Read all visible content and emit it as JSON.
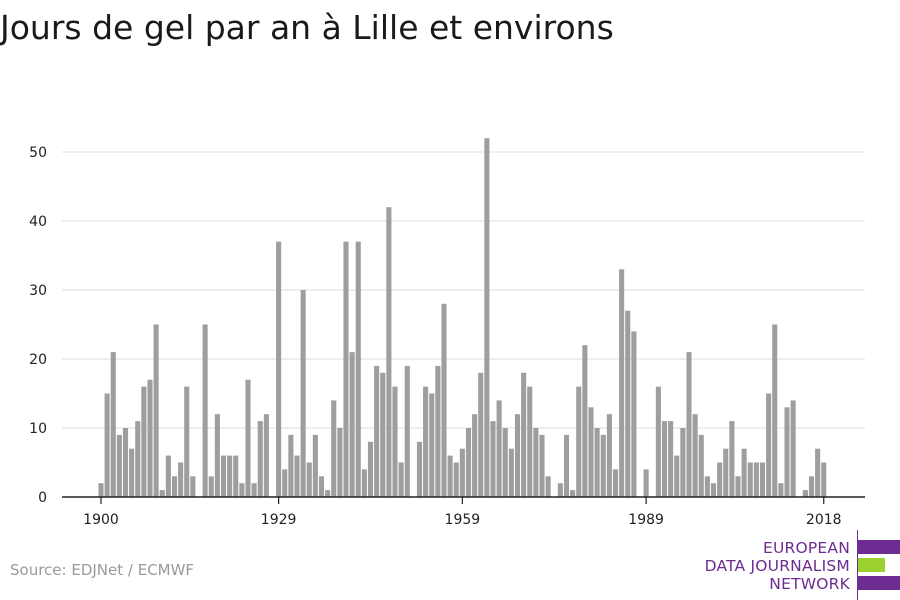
{
  "title": "Jours de gel par an à Lille et environs",
  "source": "Source: EDJNet / ECMWF",
  "logo": {
    "lines": [
      "EUROPEAN",
      "DATA JOURNALISM",
      "NETWORK"
    ],
    "colors": {
      "primary": "#6d2c91",
      "accent": "#9bd12e"
    }
  },
  "chart_data": {
    "type": "bar",
    "title": "Jours de gel par an à Lille et environs",
    "xlabel": "",
    "ylabel": "",
    "x_ticks": [
      1900,
      1929,
      1959,
      1989,
      2018
    ],
    "y_ticks": [
      0,
      10,
      20,
      30,
      40,
      50
    ],
    "ylim": [
      0,
      55
    ],
    "grid": true,
    "bar_color": "#9e9e9e",
    "x": [
      1900,
      1901,
      1902,
      1903,
      1904,
      1905,
      1906,
      1907,
      1908,
      1909,
      1910,
      1911,
      1912,
      1913,
      1914,
      1915,
      1916,
      1917,
      1918,
      1919,
      1920,
      1921,
      1922,
      1923,
      1924,
      1925,
      1926,
      1927,
      1928,
      1929,
      1930,
      1931,
      1932,
      1933,
      1934,
      1935,
      1936,
      1937,
      1938,
      1939,
      1940,
      1941,
      1942,
      1943,
      1944,
      1945,
      1946,
      1947,
      1948,
      1949,
      1950,
      1951,
      1952,
      1953,
      1954,
      1955,
      1956,
      1957,
      1958,
      1959,
      1960,
      1961,
      1962,
      1963,
      1964,
      1965,
      1966,
      1967,
      1968,
      1969,
      1970,
      1971,
      1972,
      1973,
      1974,
      1975,
      1976,
      1977,
      1978,
      1979,
      1980,
      1981,
      1982,
      1983,
      1984,
      1985,
      1986,
      1987,
      1988,
      1989,
      1990,
      1991,
      1992,
      1993,
      1994,
      1995,
      1996,
      1997,
      1998,
      1999,
      2000,
      2001,
      2002,
      2003,
      2004,
      2005,
      2006,
      2007,
      2008,
      2009,
      2010,
      2011,
      2012,
      2013,
      2014,
      2015,
      2016,
      2017,
      2018
    ],
    "values": [
      2,
      15,
      21,
      9,
      10,
      7,
      11,
      16,
      17,
      25,
      1,
      6,
      3,
      5,
      16,
      3,
      0,
      25,
      3,
      12,
      6,
      6,
      6,
      2,
      17,
      2,
      11,
      12,
      0,
      37,
      4,
      9,
      6,
      30,
      5,
      9,
      3,
      1,
      14,
      10,
      37,
      21,
      37,
      4,
      8,
      19,
      18,
      42,
      16,
      5,
      19,
      0,
      8,
      16,
      15,
      19,
      28,
      6,
      5,
      7,
      10,
      12,
      18,
      52,
      11,
      14,
      10,
      7,
      12,
      18,
      16,
      10,
      9,
      3,
      0,
      2,
      9,
      1,
      16,
      22,
      13,
      10,
      9,
      12,
      4,
      33,
      27,
      24,
      0,
      4,
      0,
      16,
      11,
      11,
      6,
      10,
      21,
      12,
      9,
      3,
      2,
      5,
      7,
      11,
      3,
      7,
      5,
      5,
      5,
      15,
      25,
      2,
      13,
      14,
      0,
      1,
      3,
      7,
      5
    ]
  }
}
